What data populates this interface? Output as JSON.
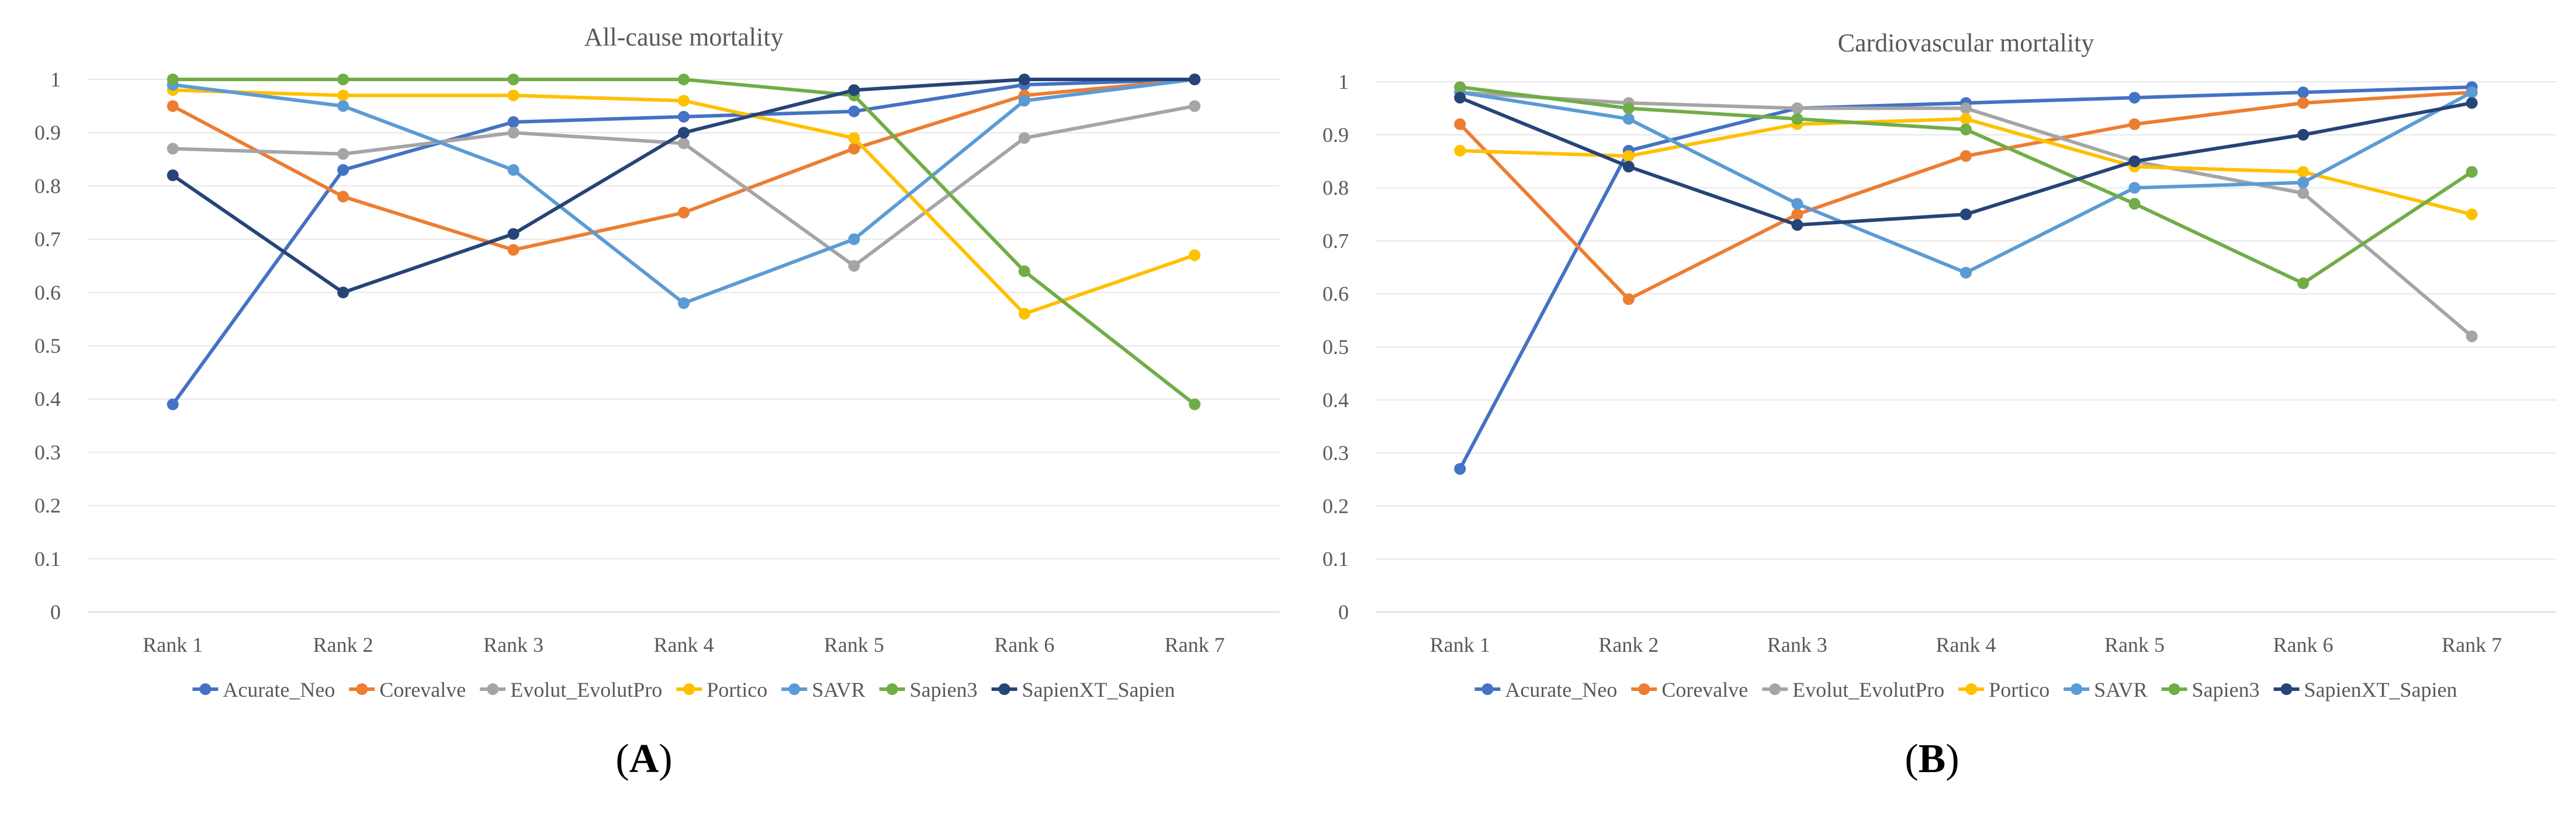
{
  "chart_data": [
    {
      "type": "line",
      "panel_label": "A",
      "title": "All-cause mortality",
      "xlabel": "",
      "ylabel": "",
      "categories": [
        "Rank 1",
        "Rank 2",
        "Rank 3",
        "Rank 4",
        "Rank 5",
        "Rank 6",
        "Rank 7"
      ],
      "ylim": [
        0,
        1
      ],
      "yticks": [
        "0",
        "0.1",
        "0.2",
        "0.3",
        "0.4",
        "0.5",
        "0.6",
        "0.7",
        "0.8",
        "0.9",
        "1"
      ],
      "grid": true,
      "legend_position": "bottom",
      "series": [
        {
          "name": "Acurate_Neo",
          "color": "#4472C4",
          "values": [
            0.39,
            0.83,
            0.92,
            0.93,
            0.94,
            0.99,
            1.0
          ]
        },
        {
          "name": "Corevalve",
          "color": "#ED7D31",
          "values": [
            0.95,
            0.78,
            0.68,
            0.75,
            0.87,
            0.97,
            1.0
          ]
        },
        {
          "name": "Evolut_EvolutPro",
          "color": "#A5A5A5",
          "values": [
            0.87,
            0.86,
            0.9,
            0.88,
            0.65,
            0.89,
            0.95
          ]
        },
        {
          "name": "Portico",
          "color": "#FFC000",
          "values": [
            0.98,
            0.97,
            0.97,
            0.96,
            0.89,
            0.56,
            0.67
          ]
        },
        {
          "name": "SAVR",
          "color": "#5B9BD5",
          "values": [
            0.99,
            0.95,
            0.83,
            0.58,
            0.7,
            0.96,
            1.0
          ]
        },
        {
          "name": "Sapien3",
          "color": "#70AD47",
          "values": [
            1.0,
            1.0,
            1.0,
            1.0,
            0.97,
            0.64,
            0.39
          ]
        },
        {
          "name": "SapienXT_Sapien",
          "color": "#264478",
          "values": [
            0.82,
            0.6,
            0.71,
            0.9,
            0.98,
            1.0,
            1.0
          ]
        }
      ]
    },
    {
      "type": "line",
      "panel_label": "B",
      "title": "Cardiovascular mortality",
      "xlabel": "",
      "ylabel": "",
      "categories": [
        "Rank 1",
        "Rank 2",
        "Rank 3",
        "Rank 4",
        "Rank 5",
        "Rank 6",
        "Rank 7"
      ],
      "ylim": [
        0,
        1
      ],
      "yticks": [
        "0",
        "0.1",
        "0.2",
        "0.3",
        "0.4",
        "0.5",
        "0.6",
        "0.7",
        "0.8",
        "0.9",
        "1"
      ],
      "grid": true,
      "legend_position": "bottom",
      "series": [
        {
          "name": "Acurate_Neo",
          "color": "#4472C4",
          "values": [
            0.27,
            0.87,
            0.95,
            0.96,
            0.97,
            0.98,
            0.99
          ]
        },
        {
          "name": "Corevalve",
          "color": "#ED7D31",
          "values": [
            0.92,
            0.59,
            0.75,
            0.86,
            0.92,
            0.96,
            0.98
          ]
        },
        {
          "name": "Evolut_EvolutPro",
          "color": "#A5A5A5",
          "values": [
            0.98,
            0.96,
            0.95,
            0.95,
            0.85,
            0.79,
            0.52
          ]
        },
        {
          "name": "Portico",
          "color": "#FFC000",
          "values": [
            0.87,
            0.86,
            0.92,
            0.93,
            0.84,
            0.83,
            0.75
          ]
        },
        {
          "name": "SAVR",
          "color": "#5B9BD5",
          "values": [
            0.98,
            0.93,
            0.77,
            0.64,
            0.8,
            0.81,
            0.98
          ]
        },
        {
          "name": "Sapien3",
          "color": "#70AD47",
          "values": [
            0.99,
            0.95,
            0.93,
            0.91,
            0.77,
            0.62,
            0.83
          ]
        },
        {
          "name": "SapienXT_Sapien",
          "color": "#264478",
          "values": [
            0.97,
            0.84,
            0.73,
            0.75,
            0.85,
            0.9,
            0.96
          ]
        }
      ]
    }
  ]
}
